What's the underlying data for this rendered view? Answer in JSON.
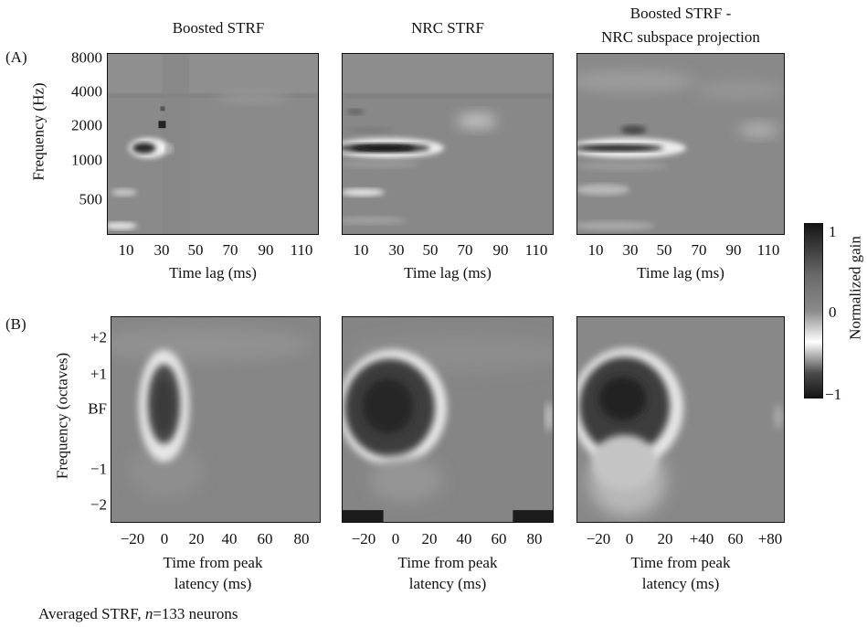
{
  "figure": {
    "col_titles": [
      "Boosted STRF",
      "NRC STRF",
      "Boosted STRF -",
      "NRC subspace projection"
    ],
    "row_a_label": "(A)",
    "row_b_label": "(B)",
    "row_a": {
      "ylabel": "Frequency (Hz)",
      "yticks": [
        "8000",
        "4000",
        "2000",
        "1000",
        "500"
      ],
      "xticks": [
        "10",
        "30",
        "50",
        "70",
        "90",
        "110"
      ],
      "xlabel": "Time lag (ms)"
    },
    "row_b": {
      "ylabel": "Frequency (octaves)",
      "yticks": [
        "+2",
        "+1",
        "BF",
        "−1",
        "−2"
      ],
      "xticks_1": [
        "−20",
        "0",
        "20",
        "40",
        "60",
        "80"
      ],
      "xticks_2": [
        "−20",
        "0",
        "20",
        "40",
        "60",
        "80"
      ],
      "xticks_3": [
        "−20",
        "0",
        "20",
        "+40",
        "60",
        "+80"
      ],
      "xlabel_line1": "Time from peak",
      "xlabel_line2": "latency (ms)"
    },
    "colorbar": {
      "label": "Normalized gain",
      "ticks": [
        "1",
        "0",
        "−1"
      ]
    },
    "caption": {
      "prefix": "Averaged STRF, ",
      "n_label": "n",
      "suffix": "=133 neurons"
    }
  }
}
